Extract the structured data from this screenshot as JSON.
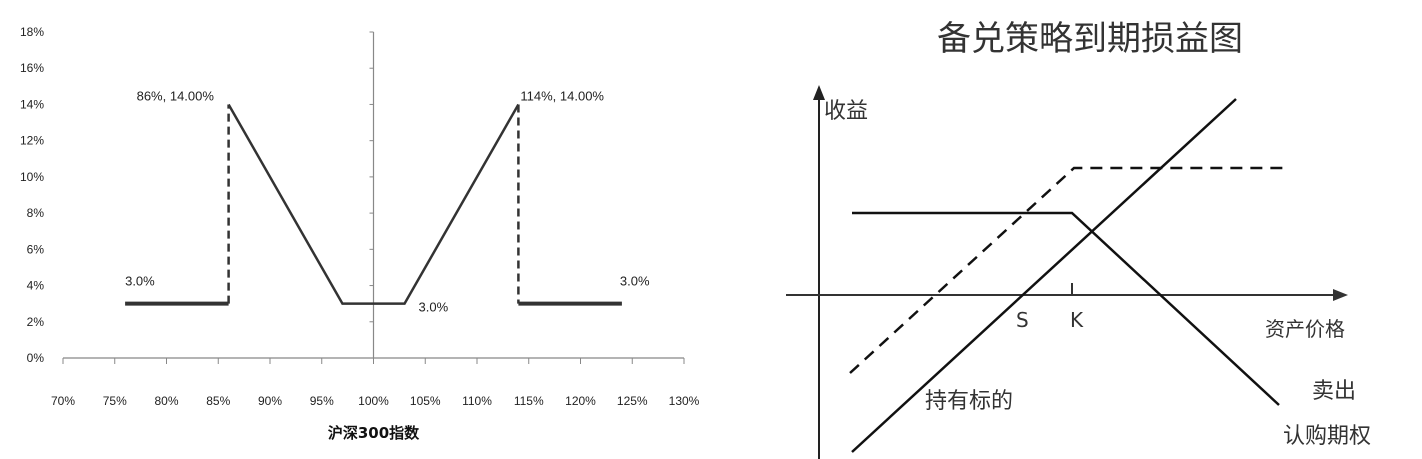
{
  "chart_data": {
    "type": "line",
    "title": "",
    "xlabel": "沪深300指数",
    "ylabel": "",
    "xlim": [
      70,
      130
    ],
    "ylim": [
      0,
      18
    ],
    "x_ticks": [
      "70%",
      "75%",
      "80%",
      "85%",
      "90%",
      "95%",
      "100%",
      "105%",
      "110%",
      "115%",
      "120%",
      "125%",
      "130%"
    ],
    "y_ticks": [
      "0%",
      "2%",
      "4%",
      "6%",
      "8%",
      "10%",
      "12%",
      "14%",
      "16%",
      "18%"
    ],
    "grid": false,
    "segments": [
      {
        "style": "solid",
        "points": [
          [
            76,
            3
          ],
          [
            86,
            3
          ]
        ]
      },
      {
        "style": "dashed",
        "points": [
          [
            86,
            3
          ],
          [
            86,
            14
          ]
        ]
      },
      {
        "style": "solid",
        "points": [
          [
            86,
            14
          ],
          [
            97,
            3
          ],
          [
            103,
            3
          ],
          [
            114,
            14
          ]
        ]
      },
      {
        "style": "dashed",
        "points": [
          [
            114,
            14
          ],
          [
            114,
            3
          ]
        ]
      },
      {
        "style": "solid",
        "points": [
          [
            114,
            3
          ],
          [
            124,
            3
          ]
        ]
      }
    ],
    "annotations": [
      {
        "text": "86%, 14.00%",
        "x": 86,
        "y": 14
      },
      {
        "text": "114%, 14.00%",
        "x": 114,
        "y": 14
      },
      {
        "text": "3.0%",
        "x": 76,
        "y": 3
      },
      {
        "text": "3.0%",
        "x": 103,
        "y": 3
      },
      {
        "text": "3.0%",
        "x": 124,
        "y": 3
      }
    ],
    "line_color": "#333333"
  },
  "diagram": {
    "title": "备兑策略到期损益图",
    "y_axis_label": "收益",
    "x_axis_label": "资产价格",
    "s_label": "S",
    "k_label": "K",
    "hold_label": "持有标的",
    "sell_call_label_1": "卖出",
    "sell_call_label_2": "认购期权"
  }
}
